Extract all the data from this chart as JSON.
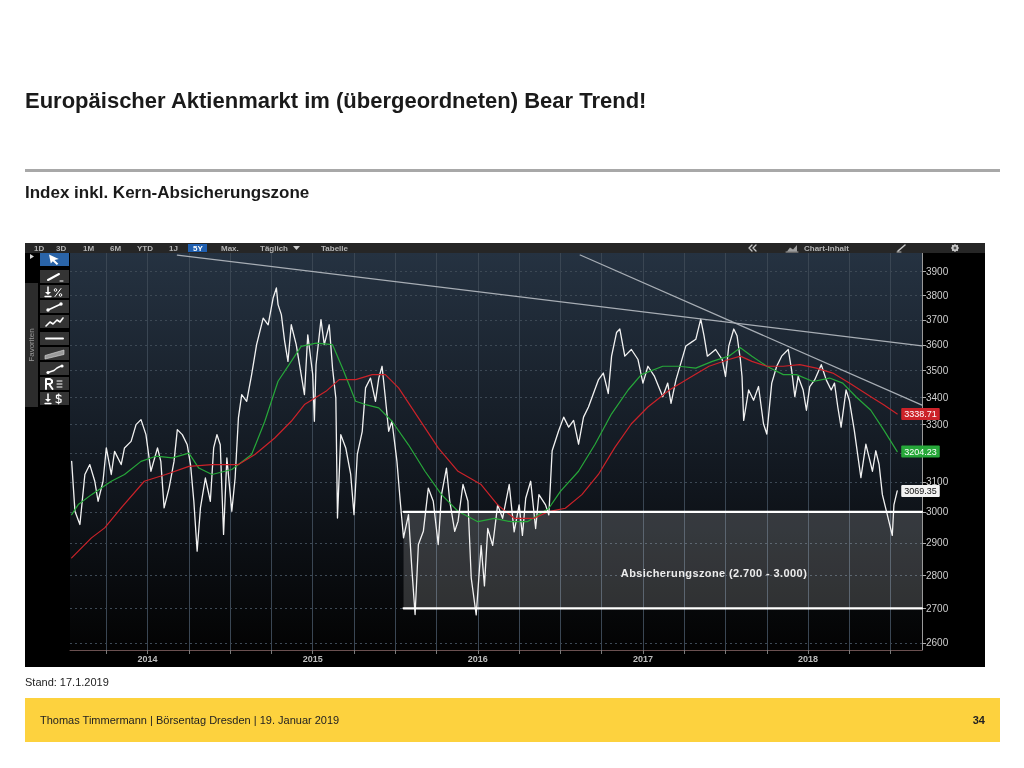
{
  "chart_data": {
    "type": "line",
    "title": "Europäischer Aktienmarkt im (übergeordneten) Bear Trend!",
    "subtitle": "Index inkl. Kern-Absicherungszone",
    "annotations": [
      "Stand: 17.1.2019",
      "Thomas Timmermann | Börsentag Dresden | 19. Januar 2019",
      "34",
      "1D",
      "3D",
      "1M",
      "6M",
      "YTD",
      "1J",
      "5Y",
      "Max.",
      "Täglich",
      "Tabelle",
      "Chart-Inhalt",
      "Favoriten",
      "Absicherungszone (2.700 - 3.000)"
    ],
    "xlim": [
      2014.03,
      2019.19
    ],
    "xticks": [
      {
        "value": 2014.25,
        "label": null
      },
      {
        "value": 2014.5,
        "label": "2014"
      },
      {
        "value": 2014.75,
        "label": null
      },
      {
        "value": 2015,
        "label": null
      },
      {
        "value": 2015.25,
        "label": null
      },
      {
        "value": 2015.5,
        "label": "2015"
      },
      {
        "value": 2015.75,
        "label": null
      },
      {
        "value": 2016,
        "label": null
      },
      {
        "value": 2016.25,
        "label": null
      },
      {
        "value": 2016.5,
        "label": "2016"
      },
      {
        "value": 2016.75,
        "label": null
      },
      {
        "value": 2017,
        "label": null
      },
      {
        "value": 2017.25,
        "label": null
      },
      {
        "value": 2017.5,
        "label": "2017"
      },
      {
        "value": 2017.75,
        "label": null
      },
      {
        "value": 2018,
        "label": null
      },
      {
        "value": 2018.25,
        "label": null
      },
      {
        "value": 2018.5,
        "label": "2018"
      },
      {
        "value": 2018.75,
        "label": null
      },
      {
        "value": 2019,
        "label": null
      }
    ],
    "ylim": [
      2580,
      3980
    ],
    "yticks": [
      2600,
      2700,
      2800,
      2900,
      3000,
      3100,
      {
        "value": 3200,
        "label": null
      },
      3300,
      3400,
      3500,
      3600,
      3700,
      3800,
      3900
    ],
    "log": true,
    "grid": true,
    "marker": "none",
    "line_style": "solid",
    "series": [
      {
        "color": "#f2f2f2",
        "x": [
          2014.04,
          2014.06,
          2014.09,
          2014.12,
          2014.15,
          2014.18,
          2014.2,
          2014.23,
          2014.25,
          2014.28,
          2014.3,
          2014.34,
          2014.36,
          2014.4,
          2014.43,
          2014.46,
          2014.49,
          2014.52,
          2014.56,
          2014.58,
          2014.6,
          2014.63,
          2014.66,
          2014.68,
          2014.71,
          2014.74,
          2014.76,
          2014.78,
          2014.8,
          2014.82,
          2014.85,
          2014.88,
          2014.9,
          2014.92,
          2014.94,
          2014.96,
          2014.98,
          2015.01,
          2015.03,
          2015.05,
          2015.07,
          2015.1,
          2015.13,
          2015.16,
          2015.2,
          2015.23,
          2015.26,
          2015.28,
          2015.29,
          2015.31,
          2015.33,
          2015.35,
          2015.37,
          2015.4,
          2015.43,
          2015.45,
          2015.47,
          2015.5,
          2015.51,
          2015.52,
          2015.55,
          2015.57,
          2015.6,
          2015.62,
          2015.64,
          2015.65,
          2015.67,
          2015.7,
          2015.73,
          2015.75,
          2015.77,
          2015.8,
          2015.82,
          2015.85,
          2015.88,
          2015.9,
          2015.92,
          2015.94,
          2015.96,
          2015.98,
          2016.01,
          2016.03,
          2016.05,
          2016.08,
          2016.1,
          2016.12,
          2016.14,
          2016.17,
          2016.2,
          2016.23,
          2016.26,
          2016.28,
          2016.31,
          2016.33,
          2016.36,
          2016.38,
          2016.41,
          2016.44,
          2016.46,
          2016.49,
          2016.52,
          2016.54,
          2016.56,
          2016.59,
          2016.62,
          2016.65,
          2016.69,
          2016.72,
          2016.75,
          2016.77,
          2016.79,
          2016.82,
          2016.85,
          2016.87,
          2016.91,
          2016.93,
          2016.95,
          2016.99,
          2017.02,
          2017.05,
          2017.08,
          2017.11,
          2017.14,
          2017.17,
          2017.2,
          2017.23,
          2017.26,
          2017.29,
          2017.31,
          2017.34,
          2017.36,
          2017.39,
          2017.43,
          2017.47,
          2017.5,
          2017.53,
          2017.57,
          2017.62,
          2017.65,
          2017.67,
          2017.7,
          2017.73,
          2017.76,
          2017.79,
          2017.82,
          2017.85,
          2017.87,
          2017.89,
          2017.94,
          2017.98,
          2018.0,
          2018.02,
          2018.05,
          2018.07,
          2018.09,
          2018.1,
          2018.11,
          2018.14,
          2018.17,
          2018.2,
          2018.23,
          2018.25,
          2018.28,
          2018.31,
          2018.34,
          2018.38,
          2018.4,
          2018.42,
          2018.44,
          2018.47,
          2018.49,
          2018.51,
          2018.54,
          2018.58,
          2018.61,
          2018.64,
          2018.66,
          2018.68,
          2018.7,
          2018.73,
          2018.75,
          2018.78,
          2018.8,
          2018.82,
          2018.85,
          2018.87,
          2018.89,
          2018.91,
          2018.93,
          2018.95,
          2018.97,
          2019.0,
          2019.01,
          2019.02,
          2019.04
        ],
        "values": [
          3170,
          3002,
          2959,
          3125,
          3159,
          3102,
          3035,
          3102,
          3217,
          3125,
          3205,
          3159,
          3217,
          3240,
          3300,
          3318,
          3264,
          3136,
          3217,
          3170,
          3013,
          3079,
          3170,
          3282,
          3264,
          3228,
          3159,
          3035,
          2874,
          3013,
          3113,
          3035,
          3217,
          3264,
          3228,
          2927,
          3182,
          3002,
          3113,
          3324,
          3410,
          3385,
          3485,
          3601,
          3707,
          3680,
          3789,
          3831,
          3762,
          3721,
          3614,
          3536,
          3680,
          3601,
          3485,
          3410,
          3640,
          3485,
          3312,
          3523,
          3701,
          3601,
          3680,
          3510,
          3397,
          2980,
          3264,
          3217,
          3125,
          2991,
          3194,
          3276,
          3435,
          3472,
          3385,
          3472,
          3517,
          3397,
          3276,
          3312,
          3170,
          3035,
          2916,
          2991,
          2822,
          2682,
          2895,
          2937,
          3079,
          3035,
          2895,
          3057,
          3147,
          3035,
          2937,
          2969,
          3091,
          3035,
          2791,
          2681,
          2892,
          2767,
          2946,
          2892,
          3023,
          2979,
          3091,
          2935,
          3023,
          2924,
          3045,
          3102,
          2946,
          3057,
          3023,
          2990,
          3207,
          3279,
          3327,
          3291,
          3315,
          3230,
          3327,
          3364,
          3414,
          3465,
          3491,
          3414,
          3556,
          3649,
          3663,
          3556,
          3582,
          3543,
          3453,
          3517,
          3478,
          3402,
          3453,
          3377,
          3465,
          3530,
          3596,
          3609,
          3622,
          3703,
          3636,
          3556,
          3582,
          3543,
          3478,
          3596,
          3663,
          3636,
          3543,
          3478,
          3315,
          3427,
          3389,
          3440,
          3303,
          3266,
          3453,
          3517,
          3556,
          3582,
          3504,
          3402,
          3478,
          3427,
          3352,
          3440,
          3465,
          3523,
          3465,
          3427,
          3453,
          3364,
          3291,
          3427,
          3389,
          3279,
          3195,
          3114,
          3230,
          3183,
          3136,
          3207,
          3160,
          3057,
          3012,
          2946,
          2924,
          3023,
          3069.35
        ],
        "value_labels": [
          null,
          null,
          null,
          null,
          null,
          null,
          null,
          null,
          null,
          null,
          null,
          null,
          null,
          null,
          null,
          null,
          null,
          null,
          null,
          null,
          null,
          null,
          null,
          null,
          null,
          null,
          null,
          null,
          null,
          null,
          null,
          null,
          null,
          null,
          null,
          null,
          null,
          null,
          null,
          null,
          null,
          null,
          null,
          null,
          null,
          null,
          null,
          null,
          null,
          null,
          null,
          null,
          null,
          null,
          null,
          null,
          null,
          null,
          null,
          null,
          null,
          null,
          null,
          null,
          null,
          null,
          null,
          null,
          null,
          null,
          null,
          null,
          null,
          null,
          null,
          null,
          null,
          null,
          null,
          null,
          null,
          null,
          null,
          null,
          null,
          null,
          null,
          null,
          null,
          null,
          null,
          null,
          null,
          null,
          null,
          null,
          null,
          null,
          null,
          null,
          null,
          null,
          null,
          null,
          null,
          null,
          null,
          null,
          null,
          null,
          null,
          null,
          null,
          null,
          null,
          null,
          null,
          null,
          null,
          null,
          null,
          null,
          null,
          null,
          null,
          null,
          null,
          null,
          null,
          null,
          null,
          null,
          null,
          null,
          null,
          null,
          null,
          null,
          null,
          null,
          null,
          null,
          null,
          null,
          null,
          null,
          null,
          null,
          null,
          null,
          null,
          null,
          null,
          null,
          null,
          null,
          null,
          null,
          null,
          null,
          null,
          null,
          null,
          null,
          null,
          null,
          null,
          null,
          null,
          null,
          null,
          null,
          null,
          null,
          null,
          null,
          null,
          null,
          null,
          null,
          null,
          null,
          null,
          null,
          null,
          null,
          null,
          null,
          null,
          null,
          null,
          null,
          null,
          null,
          "3069.35"
        ]
      },
      {
        "color": "#27a83a",
        "x": [
          2014.04,
          2014.08,
          2014.16,
          2014.28,
          2014.36,
          2014.46,
          2014.55,
          2014.65,
          2014.75,
          2014.81,
          2014.89,
          2015.01,
          2015.13,
          2015.21,
          2015.29,
          2015.37,
          2015.43,
          2015.52,
          2015.62,
          2015.68,
          2015.76,
          2015.82,
          2015.9,
          2015.98,
          2016.08,
          2016.18,
          2016.28,
          2016.38,
          2016.5,
          2016.6,
          2016.7,
          2016.8,
          2016.93,
          2017.0,
          2017.11,
          2017.21,
          2017.31,
          2017.41,
          2017.49,
          2017.62,
          2017.72,
          2017.82,
          2017.92,
          2018.02,
          2018.09,
          2018.16,
          2018.25,
          2018.35,
          2018.43,
          2018.53,
          2018.63,
          2018.71,
          2018.79,
          2018.88,
          2018.96,
          2019.04
        ],
        "values": [
          2991,
          3024,
          3057,
          3102,
          3125,
          3170,
          3188,
          3182,
          3199,
          3147,
          3125,
          3142,
          3194,
          3312,
          3460,
          3536,
          3594,
          3607,
          3601,
          3510,
          3385,
          3373,
          3361,
          3312,
          3228,
          3136,
          3057,
          3002,
          2968,
          2979,
          2968,
          2968,
          3012,
          3068,
          3136,
          3230,
          3339,
          3427,
          3485,
          3517,
          3517,
          3510,
          3536,
          3556,
          3589,
          3556,
          3517,
          3485,
          3485,
          3459,
          3472,
          3453,
          3402,
          3352,
          3279,
          3204.23
        ],
        "value_labels": [
          null,
          null,
          null,
          null,
          null,
          null,
          null,
          null,
          null,
          null,
          null,
          null,
          null,
          null,
          null,
          null,
          null,
          null,
          null,
          null,
          null,
          null,
          null,
          null,
          null,
          null,
          null,
          null,
          null,
          null,
          null,
          null,
          null,
          null,
          null,
          null,
          null,
          null,
          null,
          null,
          null,
          null,
          null,
          null,
          null,
          null,
          null,
          null,
          null,
          null,
          null,
          null,
          null,
          null,
          null,
          "3204.23"
        ]
      },
      {
        "color": "#cc2229",
        "x": [
          2014.04,
          2014.16,
          2014.24,
          2014.34,
          2014.48,
          2014.61,
          2014.75,
          2014.89,
          2015.05,
          2015.15,
          2015.27,
          2015.37,
          2015.45,
          2015.58,
          2015.66,
          2015.76,
          2015.86,
          2015.94,
          2016.02,
          2016.14,
          2016.26,
          2016.38,
          2016.52,
          2016.62,
          2016.72,
          2016.84,
          2016.93,
          2017.03,
          2017.13,
          2017.23,
          2017.33,
          2017.43,
          2017.53,
          2017.66,
          2017.78,
          2017.9,
          2018.02,
          2018.09,
          2018.16,
          2018.25,
          2018.35,
          2018.45,
          2018.55,
          2018.65,
          2018.75,
          2018.88,
          2018.96,
          2019.04
        ],
        "values": [
          2853,
          2916,
          2948,
          3013,
          3102,
          3125,
          3153,
          3159,
          3159,
          3194,
          3252,
          3312,
          3373,
          3422,
          3466,
          3466,
          3485,
          3485,
          3435,
          3324,
          3217,
          3136,
          3091,
          3023,
          2979,
          2979,
          3001,
          3012,
          3057,
          3125,
          3219,
          3303,
          3364,
          3427,
          3472,
          3517,
          3543,
          3556,
          3536,
          3517,
          3517,
          3523,
          3510,
          3491,
          3453,
          3402,
          3371,
          3338.71
        ],
        "value_labels": [
          null,
          null,
          null,
          null,
          null,
          null,
          null,
          null,
          null,
          null,
          null,
          null,
          null,
          null,
          null,
          null,
          null,
          null,
          null,
          null,
          null,
          null,
          null,
          null,
          null,
          null,
          null,
          null,
          null,
          null,
          null,
          null,
          null,
          null,
          null,
          null,
          null,
          null,
          null,
          null,
          null,
          null,
          null,
          null,
          null,
          null,
          null,
          "3338.71"
        ]
      },
      {
        "type": "line",
        "color": "#a8aeb5",
        "x": [
          2014.68,
          2019.19
        ],
        "values": [
          3971,
          3596
        ]
      },
      {
        "type": "line",
        "color": "#a8aeb5",
        "x": [
          2017.12,
          2019.19
        ],
        "values": [
          3971,
          3371
        ]
      },
      {
        "type": "line",
        "color": "#ffffff",
        "x": [
          2016.05,
          2019.19
        ],
        "values": [
          3000,
          3000
        ],
        "lower": [
          2700,
          2700
        ],
        "upper": [
          3000,
          3000
        ]
      },
      {
        "type": "line",
        "color": "#ffffff",
        "x": [
          2016.05,
          2019.19
        ],
        "values": [
          2700,
          2700
        ]
      }
    ]
  }
}
